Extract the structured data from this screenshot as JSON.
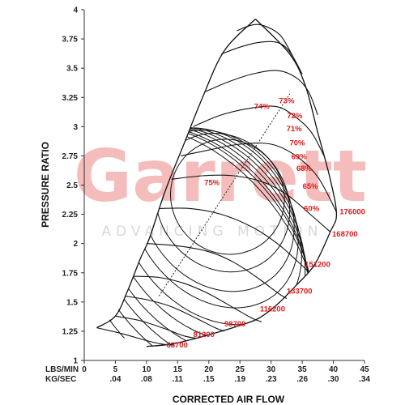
{
  "chart_data": {
    "type": "line",
    "title": "",
    "xlabel": "CORRECTED AIR FLOW",
    "ylabel": "PRESSURE RATIO",
    "x_unit_primary": "LBS/MIN",
    "x_unit_secondary": "KG/SEC",
    "xlim": [
      0,
      45
    ],
    "ylim": [
      1,
      4
    ],
    "x_ticks": [
      0,
      5,
      10,
      15,
      20,
      25,
      30,
      35,
      40,
      45
    ],
    "x_tick_labels": [
      "0",
      "5",
      "10",
      "15",
      "20",
      "25",
      "30",
      "35",
      "40",
      "45"
    ],
    "x_secondary_tick_labels": [
      "",
      ".04",
      ".08",
      ".11",
      ".15",
      ".19",
      ".23",
      ".26",
      ".30",
      ".34"
    ],
    "y_ticks": [
      1,
      1.25,
      1.5,
      1.75,
      2,
      2.25,
      2.5,
      2.75,
      3,
      3.25,
      3.5,
      3.75,
      4
    ],
    "y_tick_labels": [
      "1",
      "1.25",
      "1.5",
      "1.75",
      "2",
      "2.25",
      "2.5",
      "2.75",
      "3",
      "3.25",
      "3.5",
      "3.75",
      "4"
    ],
    "grid": false,
    "watermark": {
      "brand": "Garrett",
      "tagline": "ADVANCING MOTION"
    },
    "surge_line": [
      [
        2,
        1.28
      ],
      [
        5,
        1.38
      ],
      [
        7,
        1.6
      ],
      [
        9,
        1.87
      ],
      [
        10.5,
        2.05
      ],
      [
        13,
        2.45
      ],
      [
        16,
        2.85
      ],
      [
        19,
        3.25
      ],
      [
        22.5,
        3.65
      ],
      [
        27.5,
        3.92
      ]
    ],
    "choke_line": [
      [
        27.5,
        3.92
      ],
      [
        33,
        3.62
      ],
      [
        35.5,
        3.35
      ],
      [
        37.5,
        2.95
      ],
      [
        39.5,
        2.55
      ],
      [
        40.5,
        2.25
      ],
      [
        39.5,
        2.1
      ],
      [
        37,
        1.82
      ],
      [
        34,
        1.64
      ],
      [
        31,
        1.48
      ],
      [
        28,
        1.36
      ],
      [
        25,
        1.3
      ],
      [
        22,
        1.25
      ],
      [
        18,
        1.19
      ],
      [
        14,
        1.14
      ],
      [
        10,
        1.12
      ]
    ],
    "speed_lines": [
      {
        "label": "63700",
        "points": [
          [
            2,
            1.28
          ],
          [
            6,
            1.23
          ],
          [
            10,
            1.17
          ],
          [
            12.5,
            1.14
          ],
          [
            14.5,
            1.13
          ]
        ]
      },
      {
        "label": "81200",
        "points": [
          [
            5,
            1.38
          ],
          [
            9,
            1.34
          ],
          [
            13,
            1.27
          ],
          [
            16,
            1.21
          ],
          [
            18,
            1.19
          ]
        ]
      },
      {
        "label": "98700",
        "points": [
          [
            6.5,
            1.55
          ],
          [
            10,
            1.52
          ],
          [
            14,
            1.46
          ],
          [
            18,
            1.36
          ],
          [
            21,
            1.28
          ],
          [
            22.5,
            1.25
          ]
        ]
      },
      {
        "label": "116200",
        "points": [
          [
            8,
            1.72
          ],
          [
            12,
            1.71
          ],
          [
            16,
            1.66
          ],
          [
            20,
            1.57
          ],
          [
            24,
            1.45
          ],
          [
            27,
            1.36
          ],
          [
            28.5,
            1.33
          ]
        ]
      },
      {
        "label": "133700",
        "points": [
          [
            10,
            2.0
          ],
          [
            15,
            1.98
          ],
          [
            20,
            1.93
          ],
          [
            24,
            1.84
          ],
          [
            28,
            1.7
          ],
          [
            31,
            1.58
          ],
          [
            32.5,
            1.53
          ]
        ]
      },
      {
        "label": "151200",
        "points": [
          [
            12,
            2.3
          ],
          [
            17,
            2.3
          ],
          [
            22,
            2.25
          ],
          [
            27,
            2.14
          ],
          [
            31,
            2.0
          ],
          [
            34,
            1.86
          ],
          [
            36,
            1.76
          ]
        ]
      },
      {
        "label": "168700",
        "points": [
          [
            14,
            2.55
          ],
          [
            19,
            2.58
          ],
          [
            24,
            2.58
          ],
          [
            29,
            2.52
          ],
          [
            33,
            2.4
          ],
          [
            36.5,
            2.24
          ],
          [
            39.5,
            2.1
          ]
        ]
      },
      {
        "label": "176000",
        "points": [
          [
            15.5,
            2.75
          ],
          [
            20,
            2.8
          ],
          [
            25,
            2.85
          ],
          [
            30,
            2.85
          ],
          [
            34,
            2.75
          ],
          [
            37.5,
            2.57
          ],
          [
            40.5,
            2.27
          ]
        ]
      },
      {
        "label": "",
        "points": [
          [
            17.5,
            3.0
          ],
          [
            22,
            3.1
          ],
          [
            27,
            3.16
          ],
          [
            31,
            3.17
          ],
          [
            34,
            3.08
          ],
          [
            36.5,
            2.95
          ],
          [
            38.5,
            2.75
          ]
        ]
      },
      {
        "label": "",
        "points": [
          [
            19.5,
            3.3
          ],
          [
            23,
            3.38
          ],
          [
            27,
            3.45
          ],
          [
            31,
            3.48
          ],
          [
            34,
            3.42
          ],
          [
            36,
            3.3
          ],
          [
            37.5,
            3.1
          ]
        ]
      },
      {
        "label": "",
        "points": [
          [
            22,
            3.62
          ],
          [
            25,
            3.68
          ],
          [
            28,
            3.72
          ],
          [
            31,
            3.72
          ],
          [
            33,
            3.64
          ],
          [
            35,
            3.45
          ]
        ]
      },
      {
        "label": "",
        "points": [
          [
            24.5,
            3.82
          ],
          [
            27,
            3.87
          ],
          [
            29,
            3.86
          ],
          [
            31.5,
            3.78
          ],
          [
            33.5,
            3.6
          ]
        ]
      }
    ],
    "efficiency_islands": [
      {
        "label": "75%",
        "cx": 23,
        "cy": 2.4,
        "rx": 18,
        "ry": 0.5,
        "angle_deg": -38
      },
      {
        "label": "74%",
        "cx": 22.2,
        "cy": 2.35,
        "rx": 20.5,
        "ry": 0.62,
        "angle_deg": -38
      },
      {
        "label": "73%",
        "cx": 21.4,
        "cy": 2.28,
        "rx": 22.5,
        "ry": 0.74,
        "angle_deg": -38
      },
      {
        "label": "72%",
        "cx": 20.8,
        "cy": 2.22,
        "rx": 24,
        "ry": 0.84,
        "angle_deg": -38
      },
      {
        "label": "71%",
        "cx": 20.2,
        "cy": 2.15,
        "rx": 25.5,
        "ry": 0.93,
        "angle_deg": -38
      },
      {
        "label": "70%",
        "cx": 19.6,
        "cy": 2.08,
        "rx": 27,
        "ry": 1.02,
        "angle_deg": -38
      },
      {
        "label": "69%",
        "cx": 19.0,
        "cy": 2.02,
        "rx": 28.2,
        "ry": 1.1,
        "angle_deg": -38
      },
      {
        "label": "68%",
        "cx": 18.5,
        "cy": 1.96,
        "rx": 29.2,
        "ry": 1.17,
        "angle_deg": -38
      },
      {
        "label": "65%",
        "cx": 18.0,
        "cy": 1.9,
        "rx": 30.5,
        "ry": 1.25,
        "angle_deg": -38
      },
      {
        "label": "60%",
        "cx": 17.4,
        "cy": 1.82,
        "rx": 32,
        "ry": 1.34,
        "angle_deg": -38
      }
    ],
    "efficiency_label_positions": [
      {
        "label": "75%",
        "x": 20.5,
        "y": 2.5
      },
      {
        "label": "74%",
        "x": 28.5,
        "y": 3.15
      },
      {
        "label": "73%",
        "x": 32.5,
        "y": 3.2
      },
      {
        "label": "72%",
        "x": 33.8,
        "y": 3.07
      },
      {
        "label": "71%",
        "x": 33.7,
        "y": 2.96
      },
      {
        "label": "70%",
        "x": 34.2,
        "y": 2.84
      },
      {
        "label": "69%",
        "x": 34.5,
        "y": 2.72
      },
      {
        "label": "68%",
        "x": 35.3,
        "y": 2.62
      },
      {
        "label": "65%",
        "x": 36.3,
        "y": 2.47
      },
      {
        "label": "60%",
        "x": 36.5,
        "y": 2.28
      }
    ],
    "speed_label_positions": [
      {
        "label": "176000",
        "x": 41.0,
        "y": 2.25
      },
      {
        "label": "168700",
        "x": 39.8,
        "y": 2.06
      },
      {
        "label": "151200",
        "x": 35.4,
        "y": 1.8
      },
      {
        "label": "133700",
        "x": 32.5,
        "y": 1.57
      },
      {
        "label": "116200",
        "x": 28.2,
        "y": 1.42
      },
      {
        "label": "98700",
        "x": 22.5,
        "y": 1.29
      },
      {
        "label": "81200",
        "x": 17.5,
        "y": 1.2
      },
      {
        "label": "63700",
        "x": 13.2,
        "y": 1.11
      }
    ],
    "max_efficiency_line": [
      [
        12,
        1.55
      ],
      [
        33,
        3.28
      ]
    ]
  }
}
